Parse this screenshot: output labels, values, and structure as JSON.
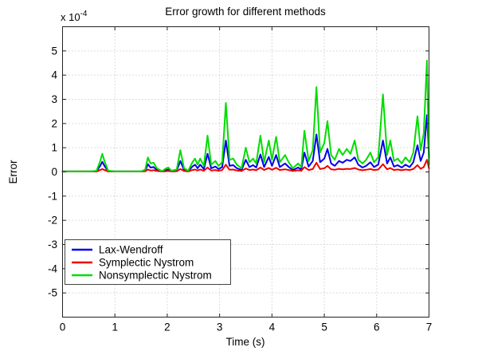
{
  "figure": {
    "title": "Error growth for different methods",
    "xlabel": "Time (s)",
    "ylabel": "Error",
    "y_multiplier_prefix": "x 10",
    "y_multiplier_exponent": "-4"
  },
  "axes": {
    "xlim": [
      0,
      7
    ],
    "ylim": [
      -6,
      6
    ],
    "y_unit": "1e-4",
    "grid": true,
    "xticks": [
      0,
      1,
      2,
      3,
      4,
      5,
      6,
      7
    ],
    "xtick_labels": [
      "0",
      "1",
      "2",
      "3",
      "4",
      "5",
      "6",
      "7"
    ],
    "yticks": [
      -5,
      -4,
      -3,
      -2,
      -1,
      0,
      1,
      2,
      3,
      4,
      5
    ],
    "ytick_labels": [
      "-5",
      "-4",
      "-3",
      "-2",
      "-1",
      "0",
      "1",
      "2",
      "3",
      "4",
      "5"
    ],
    "grid_color": "#b8b8b8",
    "axis_color": "#222222"
  },
  "legend": {
    "position": "lower-left",
    "items": [
      {
        "label": "Lax-Wendroff",
        "color": "#0000ee"
      },
      {
        "label": "Symplectic Nystrom",
        "color": "#ee0000"
      },
      {
        "label": "Nonsymplectic Nystrom",
        "color": "#00dd00"
      }
    ]
  },
  "chart_data": {
    "type": "line",
    "title": "Error growth for different methods",
    "xlabel": "Time (s)",
    "ylabel": "Error",
    "y_values_scale": "1e-4",
    "xlim": [
      0,
      7
    ],
    "ylim": [
      -6,
      6
    ],
    "grid": true,
    "legend_position": "lower-left",
    "x": [
      0,
      0.3,
      0.55,
      0.65,
      0.72,
      0.76,
      0.8,
      0.87,
      1.0,
      1.3,
      1.5,
      1.58,
      1.63,
      1.68,
      1.74,
      1.8,
      1.9,
      1.98,
      2.02,
      2.08,
      2.18,
      2.25,
      2.32,
      2.4,
      2.48,
      2.53,
      2.58,
      2.63,
      2.7,
      2.77,
      2.84,
      2.92,
      2.98,
      3.05,
      3.12,
      3.19,
      3.26,
      3.33,
      3.42,
      3.5,
      3.57,
      3.64,
      3.7,
      3.78,
      3.85,
      3.94,
      4.0,
      4.08,
      4.15,
      4.25,
      4.32,
      4.4,
      4.5,
      4.56,
      4.62,
      4.7,
      4.78,
      4.85,
      4.92,
      5.0,
      5.06,
      5.13,
      5.2,
      5.28,
      5.35,
      5.43,
      5.5,
      5.58,
      5.65,
      5.73,
      5.8,
      5.88,
      5.95,
      6.03,
      6.12,
      6.2,
      6.26,
      6.33,
      6.4,
      6.48,
      6.55,
      6.63,
      6.7,
      6.78,
      6.84,
      6.9,
      6.96,
      7.0
    ],
    "series": [
      {
        "name": "Lax-Wendroff",
        "color": "#0000ee",
        "values": [
          0.02,
          0.02,
          0.02,
          0.03,
          0.25,
          0.42,
          0.25,
          0.03,
          0.02,
          0.02,
          0.02,
          0.05,
          0.32,
          0.18,
          0.2,
          0.08,
          0.02,
          0.08,
          0.1,
          0.03,
          0.06,
          0.45,
          0.08,
          0.03,
          0.22,
          0.3,
          0.15,
          0.3,
          0.12,
          0.75,
          0.15,
          0.22,
          0.12,
          0.2,
          1.3,
          0.25,
          0.28,
          0.15,
          0.08,
          0.5,
          0.2,
          0.28,
          0.18,
          0.72,
          0.2,
          0.62,
          0.25,
          0.7,
          0.2,
          0.35,
          0.2,
          0.08,
          0.18,
          0.1,
          0.8,
          0.22,
          0.45,
          1.55,
          0.4,
          0.55,
          0.95,
          0.35,
          0.25,
          0.45,
          0.38,
          0.5,
          0.45,
          0.6,
          0.3,
          0.18,
          0.25,
          0.4,
          0.2,
          0.3,
          1.3,
          0.35,
          0.6,
          0.22,
          0.28,
          0.18,
          0.3,
          0.2,
          0.4,
          1.1,
          0.45,
          0.8,
          2.35,
          0.6
        ]
      },
      {
        "name": "Symplectic Nystrom",
        "color": "#ee0000",
        "values": [
          0.02,
          0.02,
          0.02,
          0.02,
          0.08,
          0.12,
          0.08,
          0.02,
          0.02,
          0.02,
          0.02,
          0.03,
          0.1,
          0.06,
          0.07,
          0.04,
          0.02,
          0.03,
          0.04,
          0.02,
          0.03,
          0.12,
          0.04,
          0.02,
          0.08,
          0.1,
          0.06,
          0.1,
          0.05,
          0.18,
          0.06,
          0.08,
          0.05,
          0.08,
          0.3,
          0.09,
          0.1,
          0.06,
          0.04,
          0.14,
          0.08,
          0.1,
          0.07,
          0.18,
          0.08,
          0.16,
          0.09,
          0.17,
          0.08,
          0.11,
          0.08,
          0.04,
          0.07,
          0.05,
          0.2,
          0.08,
          0.12,
          0.38,
          0.12,
          0.15,
          0.25,
          0.11,
          0.09,
          0.13,
          0.11,
          0.13,
          0.12,
          0.16,
          0.1,
          0.07,
          0.09,
          0.12,
          0.08,
          0.1,
          0.32,
          0.11,
          0.16,
          0.08,
          0.1,
          0.07,
          0.1,
          0.08,
          0.12,
          0.28,
          0.13,
          0.2,
          0.5,
          0.15
        ]
      },
      {
        "name": "Nonsymplectic Nystrom",
        "color": "#00dd00",
        "values": [
          0.02,
          0.02,
          0.02,
          0.05,
          0.45,
          0.75,
          0.45,
          0.05,
          0.02,
          0.02,
          0.02,
          0.1,
          0.6,
          0.35,
          0.38,
          0.15,
          0.03,
          0.15,
          0.18,
          0.05,
          0.1,
          0.9,
          0.15,
          0.05,
          0.4,
          0.55,
          0.3,
          0.55,
          0.25,
          1.5,
          0.3,
          0.45,
          0.25,
          0.4,
          2.85,
          0.5,
          0.55,
          0.3,
          0.15,
          1.0,
          0.4,
          0.55,
          0.35,
          1.5,
          0.4,
          1.3,
          0.5,
          1.45,
          0.4,
          0.7,
          0.4,
          0.15,
          0.35,
          0.2,
          1.7,
          0.45,
          0.9,
          3.5,
          0.8,
          1.2,
          2.1,
          0.7,
          0.5,
          0.95,
          0.7,
          0.95,
          0.75,
          1.3,
          0.5,
          0.35,
          0.5,
          0.8,
          0.4,
          0.6,
          3.2,
          0.7,
          1.3,
          0.45,
          0.55,
          0.35,
          0.6,
          0.4,
          0.8,
          2.3,
          0.9,
          1.6,
          4.6,
          0.3
        ]
      }
    ]
  }
}
